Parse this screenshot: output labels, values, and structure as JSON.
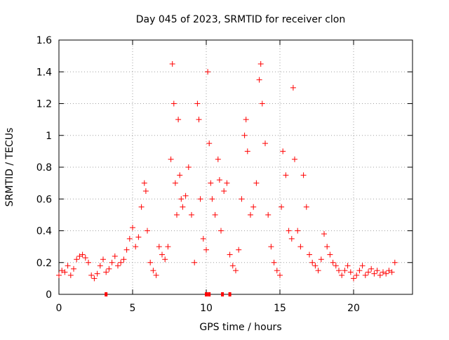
{
  "chart_data": {
    "type": "scatter",
    "title": "Day 045 of 2023, SRMTID for receiver clon",
    "xlabel": "GPS time / hours",
    "ylabel": "SRMTID / TECUs",
    "xlim": [
      0,
      24
    ],
    "ylim": [
      0,
      1.6
    ],
    "x_ticks": [
      0,
      5,
      10,
      15,
      20
    ],
    "y_ticks": [
      0,
      0.2,
      0.4,
      0.6,
      0.8,
      1,
      1.2,
      1.4,
      1.6
    ],
    "x_tick_labels": [
      "0",
      "5",
      "10",
      "15",
      "20"
    ],
    "y_tick_labels": [
      "0",
      "0.2",
      "0.4",
      "0.6",
      "0.8",
      "1",
      "1.2",
      "1.4",
      "1.6"
    ],
    "grid": true,
    "marker": "+",
    "marker_color": "#ff0000",
    "series": [
      {
        "name": "SRMTID",
        "x": [
          0.0,
          0.2,
          0.4,
          0.6,
          0.8,
          1.0,
          1.2,
          1.4,
          1.6,
          1.8,
          2.0,
          2.2,
          2.4,
          2.6,
          2.8,
          3.0,
          3.2,
          3.4,
          3.6,
          3.8,
          4.0,
          4.2,
          4.4,
          4.6,
          4.8,
          5.0,
          5.2,
          5.4,
          5.6,
          5.8,
          5.9,
          6.0,
          6.2,
          6.4,
          6.6,
          6.8,
          7.0,
          7.2,
          7.4,
          7.6,
          7.7,
          7.8,
          7.9,
          8.0,
          8.1,
          8.2,
          8.3,
          8.4,
          8.6,
          8.8,
          9.0,
          9.2,
          9.4,
          9.5,
          9.6,
          9.8,
          10.0,
          10.1,
          10.2,
          10.3,
          10.4,
          10.6,
          10.8,
          10.9,
          11.0,
          11.2,
          11.4,
          11.6,
          11.8,
          12.0,
          12.2,
          12.4,
          12.6,
          12.7,
          12.8,
          13.0,
          13.2,
          13.4,
          13.6,
          13.7,
          13.8,
          14.0,
          14.2,
          14.4,
          14.6,
          14.8,
          15.0,
          15.1,
          15.2,
          15.4,
          15.6,
          15.8,
          15.9,
          16.0,
          16.2,
          16.4,
          16.6,
          16.8,
          17.0,
          17.2,
          17.4,
          17.6,
          17.8,
          18.0,
          18.2,
          18.4,
          18.6,
          18.8,
          19.0,
          19.2,
          19.4,
          19.6,
          19.8,
          20.0,
          20.2,
          20.4,
          20.6,
          20.8,
          21.0,
          21.2,
          21.4,
          21.6,
          21.8,
          22.0,
          22.2,
          22.4,
          22.6,
          22.8
        ],
        "y": [
          0.12,
          0.15,
          0.14,
          0.18,
          0.12,
          0.16,
          0.22,
          0.24,
          0.25,
          0.23,
          0.2,
          0.12,
          0.1,
          0.13,
          0.18,
          0.22,
          0.14,
          0.16,
          0.2,
          0.24,
          0.18,
          0.2,
          0.22,
          0.28,
          0.35,
          0.42,
          0.3,
          0.36,
          0.55,
          0.7,
          0.65,
          0.4,
          0.2,
          0.15,
          0.12,
          0.3,
          0.25,
          0.22,
          0.3,
          0.85,
          1.45,
          1.2,
          0.7,
          0.5,
          1.1,
          0.75,
          0.6,
          0.55,
          0.62,
          0.8,
          0.5,
          0.2,
          1.2,
          1.1,
          0.6,
          0.35,
          0.28,
          1.4,
          0.95,
          0.7,
          0.6,
          0.5,
          0.85,
          0.72,
          0.4,
          0.65,
          0.7,
          0.25,
          0.18,
          0.15,
          0.28,
          0.6,
          1.0,
          1.1,
          0.9,
          0.5,
          0.55,
          0.7,
          1.35,
          1.45,
          1.2,
          0.95,
          0.5,
          0.3,
          0.2,
          0.15,
          0.12,
          0.55,
          0.9,
          0.75,
          0.4,
          0.35,
          1.3,
          0.85,
          0.4,
          0.3,
          0.75,
          0.55,
          0.25,
          0.2,
          0.18,
          0.15,
          0.22,
          0.38,
          0.3,
          0.25,
          0.2,
          0.18,
          0.15,
          0.12,
          0.15,
          0.18,
          0.14,
          0.1,
          0.12,
          0.15,
          0.18,
          0.12,
          0.14,
          0.16,
          0.13,
          0.15,
          0.12,
          0.14,
          0.13,
          0.15,
          0.14,
          0.2
        ]
      }
    ],
    "baseline_markers_x": [
      3.2,
      10.0,
      10.2,
      11.1,
      11.6
    ]
  }
}
